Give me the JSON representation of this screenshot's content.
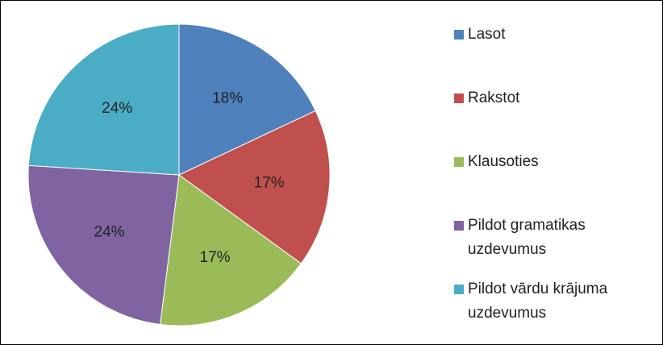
{
  "chart_data": {
    "type": "pie",
    "categories": [
      "Lasot",
      "Rakstot",
      "Klausoties",
      "Pildot gramatikas uzdevumus",
      "Pildot vārdu krājuma uzdevumus"
    ],
    "values": [
      18,
      17,
      17,
      24,
      24
    ],
    "value_labels": [
      "18%",
      "17%",
      "17%",
      "24%",
      "24%"
    ],
    "colors": [
      "#4f81bd",
      "#c0504d",
      "#9bbb59",
      "#8064a2",
      "#4bacc6"
    ],
    "legend": "right"
  }
}
